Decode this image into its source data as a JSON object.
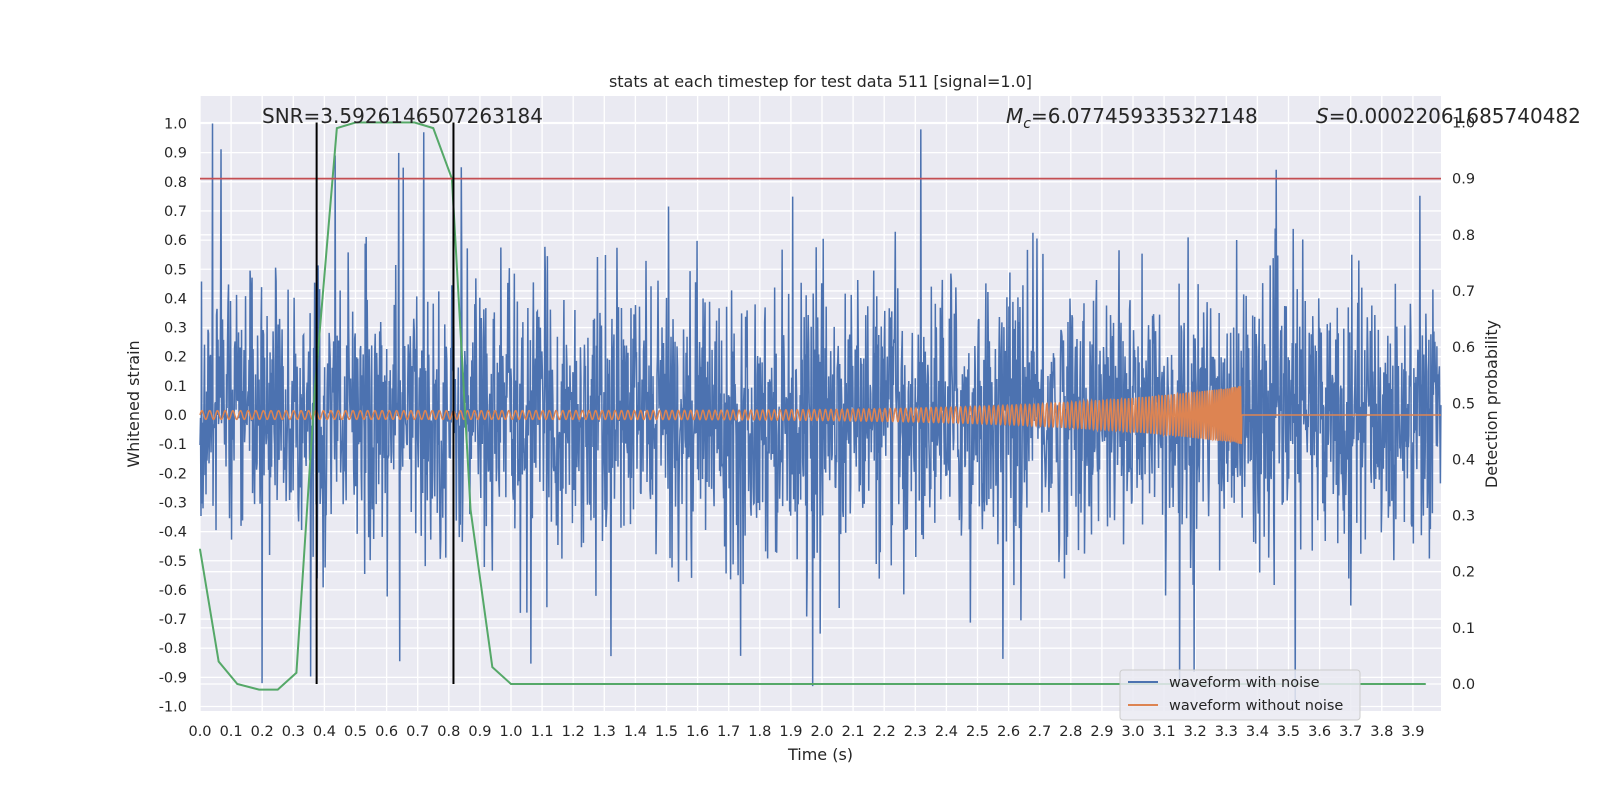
{
  "chart_data": {
    "type": "line",
    "title": "stats at each timestep for test data 511 [signal=1.0]",
    "xlabel": "Time (s)",
    "ylabel_left": "Whitened strain",
    "ylabel_right": "Detection probability",
    "xlim": [
      0.0,
      3.99
    ],
    "ylim_left": [
      -1.05,
      1.05
    ],
    "ylim_right": [
      -0.05,
      1.0
    ],
    "x_ticks": [
      "0.0",
      "0.1",
      "0.2",
      "0.3",
      "0.4",
      "0.5",
      "0.6",
      "0.7",
      "0.8",
      "0.9",
      "1.0",
      "1.1",
      "1.2",
      "1.3",
      "1.4",
      "1.5",
      "1.6",
      "1.7",
      "1.8",
      "1.9",
      "2.0",
      "2.1",
      "2.2",
      "2.3",
      "2.4",
      "2.5",
      "2.6",
      "2.7",
      "2.8",
      "2.9",
      "3.0",
      "3.1",
      "3.2",
      "3.3",
      "3.4",
      "3.5",
      "3.6",
      "3.7",
      "3.8",
      "3.9"
    ],
    "y_ticks_left": [
      "1.0",
      "0.9",
      "0.8",
      "0.7",
      "0.6",
      "0.5",
      "0.4",
      "0.3",
      "0.2",
      "0.1",
      "0.0",
      "-0.1",
      "-0.2",
      "-0.3",
      "-0.4",
      "-0.5",
      "-0.6",
      "-0.7",
      "-0.8",
      "-0.9",
      "-1.0"
    ],
    "y_ticks_right": [
      "1.0",
      "0.9",
      "0.8",
      "0.7",
      "0.6",
      "0.5",
      "0.4",
      "0.3",
      "0.2",
      "0.1",
      "0.0"
    ],
    "grid": true,
    "legend_position": "bottom-right",
    "annotations": {
      "snr": "SNR=3.5926146507263184",
      "mc_symbol": "M",
      "mc_sub": "c",
      "mc_value": "=6.077459335327148",
      "s_symbol": "S",
      "s_value": "=0.00022061685740482"
    },
    "series": [
      {
        "name": "waveform with noise",
        "color": "#4c72b0",
        "axis": "left",
        "description_values": "dense noise trace, amplitude mostly within ±0.6, peaks near ±1.0",
        "peaks": [
          {
            "x": 0.04,
            "y": 1.0
          },
          {
            "x": 0.72,
            "y": 0.97
          },
          {
            "x": 0.84,
            "y": 0.85
          },
          {
            "x": 0.2,
            "y": -0.92
          },
          {
            "x": 1.97,
            "y": -0.93
          },
          {
            "x": 3.15,
            "y": -0.91
          }
        ]
      },
      {
        "name": "waveform without noise",
        "color": "#dd8452",
        "axis": "left",
        "chirp_end_x": 3.35,
        "chirp_start_amplitude": 0.015,
        "chirp_end_amplitude": 0.1
      },
      {
        "name": "",
        "color": "#55a868",
        "axis": "right",
        "x": [
          0.0,
          0.06,
          0.12,
          0.19,
          0.25,
          0.31,
          0.37,
          0.44,
          0.5,
          0.56,
          0.62,
          0.69,
          0.75,
          0.81,
          0.87,
          0.94,
          1.0,
          1.2,
          1.5,
          2.0,
          2.5,
          3.0,
          3.5,
          3.94
        ],
        "y": [
          0.24,
          0.04,
          0.0,
          -0.01,
          -0.01,
          0.02,
          0.53,
          0.99,
          1.0,
          1.0,
          1.0,
          1.0,
          0.99,
          0.9,
          0.31,
          0.03,
          0.0,
          0.0,
          0.0,
          0.0,
          0.0,
          0.0,
          0.0,
          0.0
        ]
      }
    ],
    "threshold_line": {
      "axis": "right",
      "y": 0.9,
      "color": "#c44e52"
    },
    "vertical_lines": [
      {
        "x": 0.375,
        "color": "#000000"
      },
      {
        "x": 0.815,
        "color": "#000000"
      }
    ]
  }
}
